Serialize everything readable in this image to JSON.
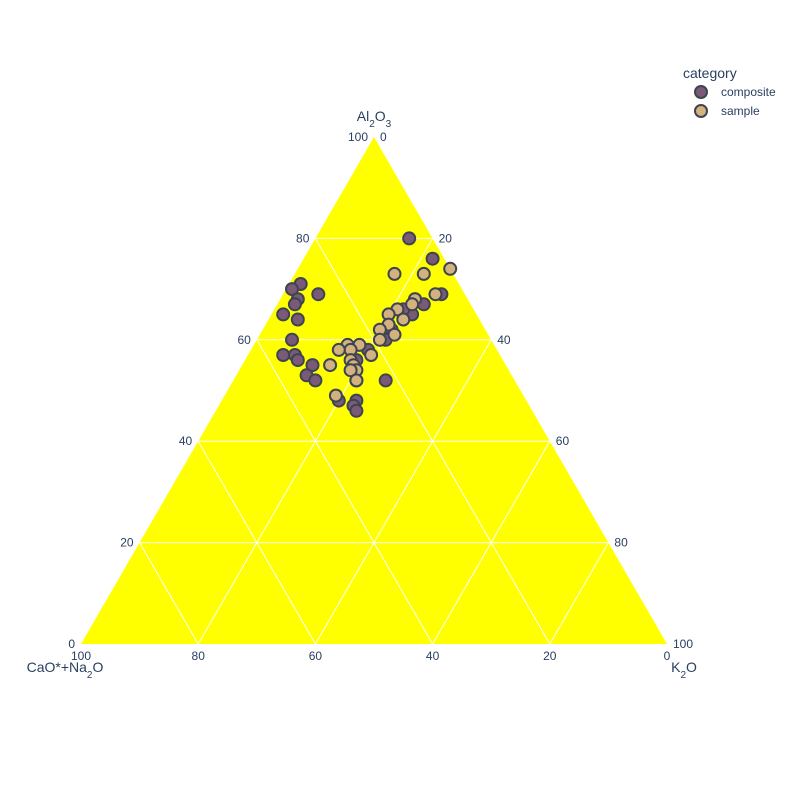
{
  "chart_data": {
    "type": "scatter",
    "subtype": "ternary",
    "axes": {
      "a": {
        "label_main": "Al",
        "label_sub1": "2",
        "label_mid": "O",
        "label_sub2": "3",
        "text": "Al2O3"
      },
      "b": {
        "label_main": "CaO*+Na",
        "label_sub1": "2",
        "label_mid": "O",
        "label_sub2": "",
        "text": "CaO*+Na2O"
      },
      "c": {
        "label_main": "K",
        "label_sub1": "2",
        "label_mid": "O",
        "label_sub2": "",
        "text": "K2O"
      }
    },
    "ticks": [
      "0",
      "20",
      "40",
      "60",
      "80",
      "100"
    ],
    "background_color": "#ffff00",
    "grid": true,
    "legend": {
      "title": "category",
      "position": "top-right"
    },
    "series": [
      {
        "name": "composite",
        "color": "#7b5a78",
        "points": [
          {
            "a": 80,
            "b": 4,
            "c": 16
          },
          {
            "a": 76,
            "b": 2,
            "c": 22
          },
          {
            "a": 71,
            "b": 27,
            "c": 2
          },
          {
            "a": 70,
            "b": 29,
            "c": 1
          },
          {
            "a": 69,
            "b": 25,
            "c": 6
          },
          {
            "a": 68,
            "b": 29,
            "c": 3
          },
          {
            "a": 67,
            "b": 30,
            "c": 3
          },
          {
            "a": 65,
            "b": 33,
            "c": 2
          },
          {
            "a": 64,
            "b": 31,
            "c": 5
          },
          {
            "a": 60,
            "b": 34,
            "c": 6
          },
          {
            "a": 57,
            "b": 37,
            "c": 6
          },
          {
            "a": 57,
            "b": 35,
            "c": 8
          },
          {
            "a": 56,
            "b": 35,
            "c": 9
          },
          {
            "a": 55,
            "b": 33,
            "c": 12
          },
          {
            "a": 53,
            "b": 35,
            "c": 12
          },
          {
            "a": 52,
            "b": 34,
            "c": 14
          },
          {
            "a": 52,
            "b": 27,
            "c": 21
          },
          {
            "a": 52,
            "b": 22,
            "c": 26
          },
          {
            "a": 48,
            "b": 29,
            "c": 23
          },
          {
            "a": 48,
            "b": 32,
            "c": 20
          },
          {
            "a": 47,
            "b": 30,
            "c": 23
          },
          {
            "a": 46,
            "b": 30,
            "c": 24
          },
          {
            "a": 69,
            "b": 4,
            "c": 27
          },
          {
            "a": 68,
            "b": 9,
            "c": 23
          },
          {
            "a": 67,
            "b": 8,
            "c": 25
          },
          {
            "a": 65,
            "b": 11,
            "c": 24
          },
          {
            "a": 66,
            "b": 12,
            "c": 22
          },
          {
            "a": 62,
            "b": 16,
            "c": 22
          },
          {
            "a": 60,
            "b": 18,
            "c": 22
          },
          {
            "a": 58,
            "b": 22,
            "c": 20
          },
          {
            "a": 56,
            "b": 25,
            "c": 19
          }
        ]
      },
      {
        "name": "sample",
        "color": "#d4b27f",
        "points": [
          {
            "a": 74,
            "b": 0,
            "c": 26
          },
          {
            "a": 73,
            "b": 5,
            "c": 22
          },
          {
            "a": 73,
            "b": 10,
            "c": 17
          },
          {
            "a": 69,
            "b": 5,
            "c": 26
          },
          {
            "a": 68,
            "b": 9,
            "c": 23
          },
          {
            "a": 67,
            "b": 10,
            "c": 23
          },
          {
            "a": 66,
            "b": 13,
            "c": 21
          },
          {
            "a": 65,
            "b": 15,
            "c": 20
          },
          {
            "a": 64,
            "b": 13,
            "c": 23
          },
          {
            "a": 63,
            "b": 16,
            "c": 21
          },
          {
            "a": 62,
            "b": 18,
            "c": 20
          },
          {
            "a": 61,
            "b": 16,
            "c": 23
          },
          {
            "a": 60,
            "b": 19,
            "c": 21
          },
          {
            "a": 59,
            "b": 23,
            "c": 18
          },
          {
            "a": 59,
            "b": 25,
            "c": 16
          },
          {
            "a": 58,
            "b": 25,
            "c": 17
          },
          {
            "a": 58,
            "b": 27,
            "c": 15
          },
          {
            "a": 57,
            "b": 22,
            "c": 21
          },
          {
            "a": 56,
            "b": 26,
            "c": 18
          },
          {
            "a": 55,
            "b": 30,
            "c": 15
          },
          {
            "a": 55,
            "b": 26,
            "c": 19
          },
          {
            "a": 54,
            "b": 26,
            "c": 20
          },
          {
            "a": 54,
            "b": 27,
            "c": 19
          },
          {
            "a": 52,
            "b": 27,
            "c": 21
          },
          {
            "a": 49,
            "b": 32,
            "c": 19
          }
        ]
      }
    ]
  }
}
